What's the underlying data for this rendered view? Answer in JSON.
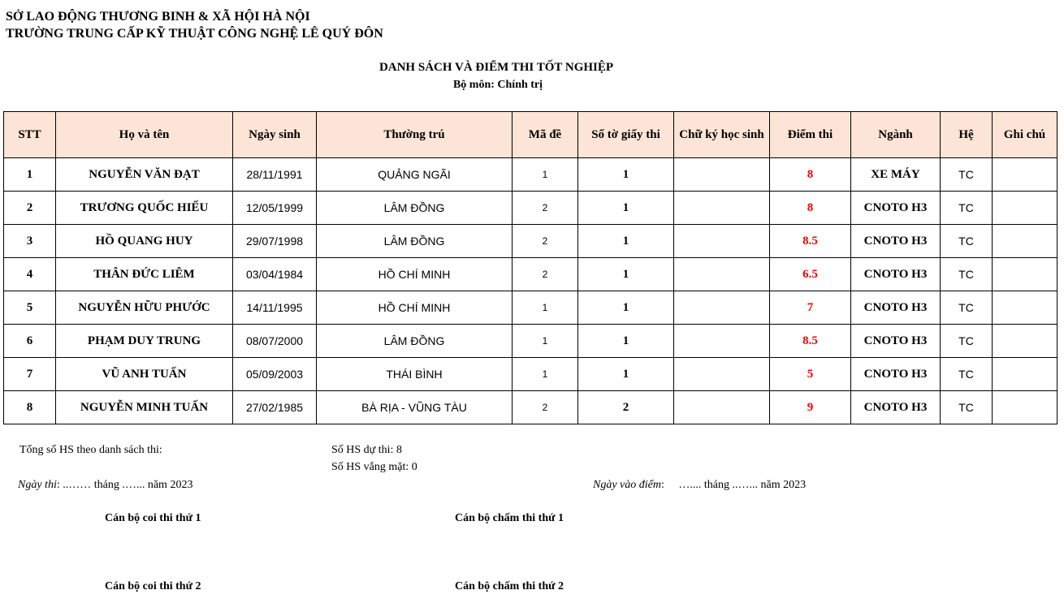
{
  "header": {
    "org": "SỞ LAO ĐỘNG THƯƠNG BINH & XÃ HỘI HÀ NỘI",
    "school": "TRƯỜNG TRUNG CẤP KỸ THUẬT CÔNG NGHỆ LÊ QUÝ ĐÔN",
    "title": "DANH SÁCH VÀ ĐIỂM THI TỐT NGHIỆP",
    "subject": "Bộ môn: Chính trị"
  },
  "table": {
    "columns": [
      "STT",
      "Họ và tên",
      "Ngày sinh",
      "Thường trú",
      "Mã đề",
      "Số tờ giấy thi",
      "Chữ ký học sinh",
      "Điểm thi",
      "Ngành",
      "Hệ",
      "Ghi chú"
    ],
    "rows": [
      [
        "1",
        "NGUYỄN VĂN ĐẠT",
        "28/11/1991",
        "QUẢNG NGÃI",
        "1",
        "1",
        "",
        "8",
        "XE MÁY",
        "TC",
        ""
      ],
      [
        "2",
        "TRƯƠNG QUỐC HIẾU",
        "12/05/1999",
        "LÂM ĐỒNG",
        "2",
        "1",
        "",
        "8",
        "CNOTO H3",
        "TC",
        ""
      ],
      [
        "3",
        "HỒ QUANG HUY",
        "29/07/1998",
        "LÂM ĐỒNG",
        "2",
        "1",
        "",
        "8.5",
        "CNOTO H3",
        "TC",
        ""
      ],
      [
        "4",
        "THÂN ĐỨC LIÊM",
        "03/04/1984",
        "HỒ CHÍ MINH",
        "2",
        "1",
        "",
        "6.5",
        "CNOTO H3",
        "TC",
        ""
      ],
      [
        "5",
        "NGUYỄN HỮU PHƯỚC",
        "14/11/1995",
        "HỒ CHÍ MINH",
        "1",
        "1",
        "",
        "7",
        "CNOTO H3",
        "TC",
        ""
      ],
      [
        "6",
        "PHẠM DUY TRUNG",
        "08/07/2000",
        "LÂM ĐỒNG",
        "1",
        "1",
        "",
        "8.5",
        "CNOTO H3",
        "TC",
        ""
      ],
      [
        "7",
        "VŨ ANH TUẤN",
        "05/09/2003",
        "THÁI BÌNH",
        "1",
        "1",
        "",
        "5",
        "CNOTO H3",
        "TC",
        ""
      ],
      [
        "8",
        "NGUYỄN MINH TUẤN",
        "27/02/1985",
        "BÀ RỊA - VŨNG TÀU",
        "2",
        "2",
        "",
        "9",
        "CNOTO H3",
        "TC",
        ""
      ]
    ]
  },
  "footer": {
    "total_label": "Tổng số HS theo danh sách thi:",
    "present": "Số HS dự thi:   8",
    "absent": "Số HS vắng mặt:   0",
    "exam_date_label": "Ngày thi",
    "exam_date_value": ": ..…… tháng .…... năm 2023",
    "grade_date_label": "Ngày vào điểm",
    "grade_date_value": ":     ….... tháng ..…... năm 2023",
    "proctor1": "Cán bộ coi thi thứ 1",
    "grader1": "Cán bộ chấm thi thứ 1",
    "proctor2": "Cán bộ coi thi thứ 2",
    "grader2": "Cán bộ chấm thi thứ 2"
  },
  "colors": {
    "header_bg": "#fce4d6",
    "score": "#ff0000"
  }
}
